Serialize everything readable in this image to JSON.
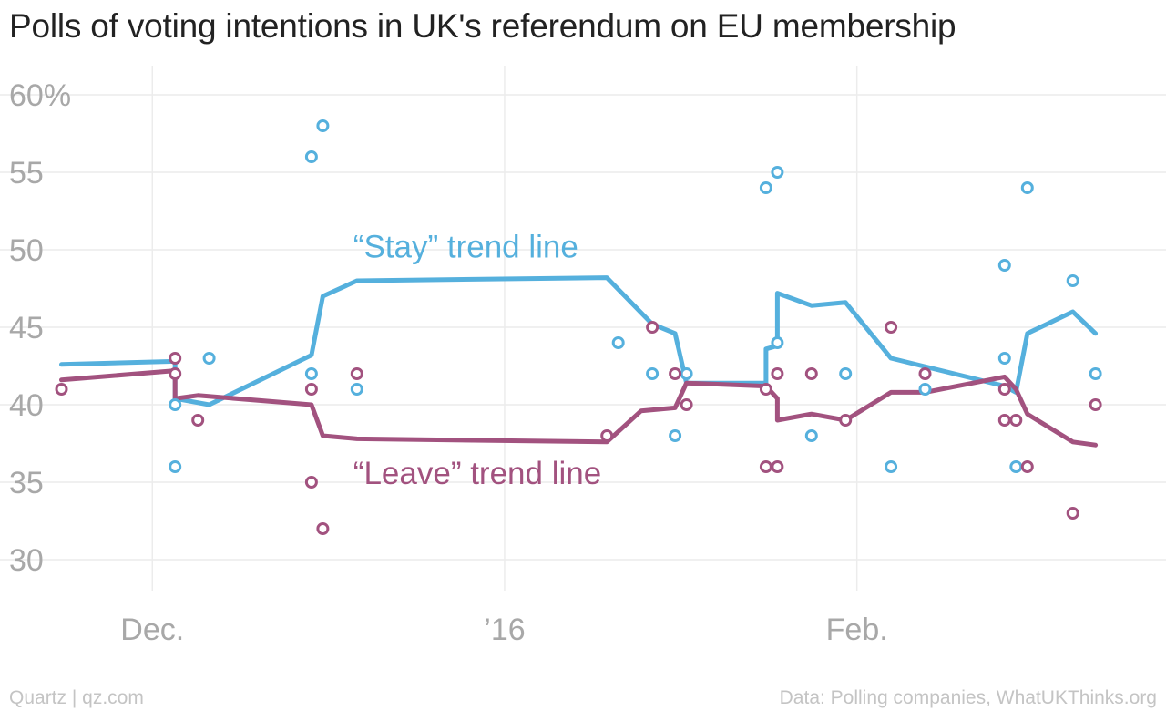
{
  "title": "Polls of voting intentions in UK's referendum on EU membership",
  "footer": {
    "source_left": "Quartz | qz.com",
    "source_right": "Data: Polling companies, WhatUKThinks.org"
  },
  "colors": {
    "stay": "#55b0dd",
    "leave": "#a2527f",
    "grid": "#ececec",
    "text": "#a8a8a8"
  },
  "chart_data": {
    "type": "scatter",
    "title": "Polls of voting intentions in UK's referendum on EU membership",
    "xlabel": "",
    "ylabel": "",
    "x_axis": {
      "type": "date",
      "range": [
        "2015-11-22",
        "2016-02-27"
      ],
      "ticks": [
        {
          "date": "2015-12-01",
          "label": "Dec."
        },
        {
          "date": "2016-01-01",
          "label": "’16"
        },
        {
          "date": "2016-02-01",
          "label": "Feb."
        }
      ]
    },
    "y_axis": {
      "range": [
        28,
        62
      ],
      "ticks": [
        {
          "value": 30,
          "label": "30"
        },
        {
          "value": 35,
          "label": "35"
        },
        {
          "value": 40,
          "label": "40"
        },
        {
          "value": 45,
          "label": "45"
        },
        {
          "value": 50,
          "label": "50"
        },
        {
          "value": 55,
          "label": "55"
        },
        {
          "value": 60,
          "label": "60%"
        }
      ]
    },
    "grid": true,
    "annotations": [
      {
        "text": "“Stay” trend line",
        "series": "stay",
        "date": "2015-12-19",
        "value": 50.2
      },
      {
        "text": "“Leave” trend line",
        "series": "leave",
        "date": "2015-12-19",
        "value": 35.6
      }
    ],
    "series": [
      {
        "key": "stay",
        "points": [
          [
            "2015-12-03",
            40
          ],
          [
            "2015-12-03",
            36
          ],
          [
            "2015-12-06",
            43
          ],
          [
            "2015-12-15",
            56
          ],
          [
            "2015-12-15",
            42
          ],
          [
            "2015-12-16",
            58
          ],
          [
            "2015-12-19",
            41
          ],
          [
            "2016-01-11",
            44
          ],
          [
            "2016-01-14",
            42
          ],
          [
            "2016-01-16",
            38
          ],
          [
            "2016-01-17",
            42
          ],
          [
            "2016-01-24",
            54
          ],
          [
            "2016-01-25",
            55
          ],
          [
            "2016-01-25",
            44
          ],
          [
            "2016-01-28",
            38
          ],
          [
            "2016-01-31",
            42
          ],
          [
            "2016-02-04",
            36
          ],
          [
            "2016-02-07",
            41
          ],
          [
            "2016-02-14",
            49
          ],
          [
            "2016-02-14",
            43
          ],
          [
            "2016-02-15",
            36
          ],
          [
            "2016-02-16",
            54
          ],
          [
            "2016-02-20",
            48
          ],
          [
            "2016-02-22",
            42
          ]
        ],
        "trend": [
          [
            "2015-11-23",
            42.6
          ],
          [
            "2015-12-03",
            42.8
          ],
          [
            "2015-12-03",
            40.4
          ],
          [
            "2015-12-06",
            40.0
          ],
          [
            "2015-12-15",
            43.2
          ],
          [
            "2015-12-16",
            47.0
          ],
          [
            "2015-12-19",
            48.0
          ],
          [
            "2016-01-10",
            48.2
          ],
          [
            "2016-01-14",
            45.2
          ],
          [
            "2016-01-16",
            44.6
          ],
          [
            "2016-01-17",
            41.4
          ],
          [
            "2016-01-24",
            41.4
          ],
          [
            "2016-01-24",
            43.4
          ],
          [
            "2016-01-24",
            43.6
          ],
          [
            "2016-01-25",
            43.8
          ],
          [
            "2016-01-25",
            47.2
          ],
          [
            "2016-01-28",
            46.4
          ],
          [
            "2016-01-31",
            46.6
          ],
          [
            "2016-02-04",
            43.0
          ],
          [
            "2016-02-14",
            41.2
          ],
          [
            "2016-02-15",
            40.8
          ],
          [
            "2016-02-16",
            44.6
          ],
          [
            "2016-02-20",
            46.0
          ],
          [
            "2016-02-22",
            44.6
          ]
        ]
      },
      {
        "key": "leave",
        "points": [
          [
            "2015-11-23",
            41
          ],
          [
            "2015-12-03",
            43
          ],
          [
            "2015-12-03",
            42
          ],
          [
            "2015-12-05",
            39
          ],
          [
            "2015-12-15",
            41
          ],
          [
            "2015-12-15",
            35
          ],
          [
            "2015-12-16",
            32
          ],
          [
            "2015-12-19",
            42
          ],
          [
            "2016-01-10",
            38
          ],
          [
            "2016-01-14",
            45
          ],
          [
            "2016-01-16",
            42
          ],
          [
            "2016-01-17",
            40
          ],
          [
            "2016-01-24",
            41
          ],
          [
            "2016-01-24",
            36
          ],
          [
            "2016-01-25",
            36
          ],
          [
            "2016-01-25",
            42
          ],
          [
            "2016-01-28",
            42
          ],
          [
            "2016-01-31",
            39
          ],
          [
            "2016-02-04",
            45
          ],
          [
            "2016-02-07",
            42
          ],
          [
            "2016-02-14",
            41
          ],
          [
            "2016-02-14",
            39
          ],
          [
            "2016-02-15",
            39
          ],
          [
            "2016-02-16",
            36
          ],
          [
            "2016-02-20",
            33
          ],
          [
            "2016-02-22",
            40
          ]
        ],
        "trend": [
          [
            "2015-11-23",
            41.6
          ],
          [
            "2015-12-03",
            42.2
          ],
          [
            "2015-12-03",
            40.4
          ],
          [
            "2015-12-05",
            40.6
          ],
          [
            "2015-12-15",
            40.0
          ],
          [
            "2015-12-16",
            38.0
          ],
          [
            "2015-12-19",
            37.8
          ],
          [
            "2016-01-10",
            37.6
          ],
          [
            "2016-01-13",
            39.6
          ],
          [
            "2016-01-16",
            39.8
          ],
          [
            "2016-01-17",
            41.4
          ],
          [
            "2016-01-24",
            41.2
          ],
          [
            "2016-01-25",
            40.4
          ],
          [
            "2016-01-25",
            39.0
          ],
          [
            "2016-01-28",
            39.4
          ],
          [
            "2016-01-31",
            39.0
          ],
          [
            "2016-02-04",
            40.8
          ],
          [
            "2016-02-07",
            40.8
          ],
          [
            "2016-02-14",
            41.8
          ],
          [
            "2016-02-15",
            41.0
          ],
          [
            "2016-02-16",
            39.4
          ],
          [
            "2016-02-20",
            37.6
          ],
          [
            "2016-02-22",
            37.4
          ]
        ]
      }
    ]
  }
}
